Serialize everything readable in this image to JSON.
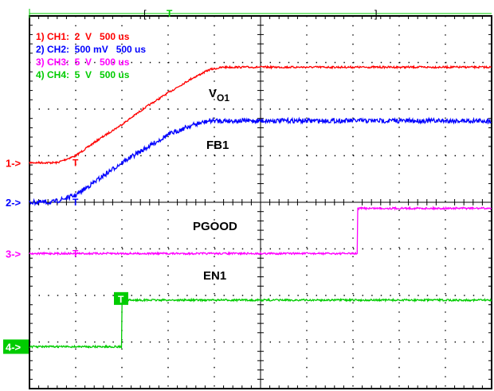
{
  "chart_data": {
    "type": "line",
    "title": "",
    "xlabel": "",
    "ylabel": "",
    "grid": true,
    "x_divisions": 10,
    "y_divisions": 8,
    "legend": [
      {
        "text": "1) CH1:  2  V   500 us",
        "color": "#ff0000"
      },
      {
        "text": "2) CH2:  500 mV   500 us",
        "color": "#0000ff"
      },
      {
        "text": "3) CH3:  5  V   500 us",
        "color": "#ff00ff"
      },
      {
        "text": "4) CH4:  5  V   500 us",
        "color": "#00cc00"
      }
    ],
    "markers": [
      {
        "text": "1->",
        "color": "#ff0000"
      },
      {
        "text": "2->",
        "color": "#0000ff"
      },
      {
        "text": "3->",
        "color": "#ff00ff"
      },
      {
        "text": "4->",
        "color": "#ffffff",
        "bg": "#00cc00"
      }
    ],
    "annotations": [
      {
        "text": "V",
        "sub": "O1"
      },
      {
        "text": "FB1"
      },
      {
        "text": "PGOOD"
      },
      {
        "text": "EN1"
      }
    ],
    "trigger_label": "T",
    "series": [
      {
        "id": "ch1",
        "color": "#ff0000",
        "noise": 0.02,
        "points": [
          [
            0,
            0
          ],
          [
            0.6,
            0
          ],
          [
            1,
            0.15
          ],
          [
            1.5,
            0.5
          ],
          [
            2,
            0.82
          ],
          [
            2.5,
            1.18
          ],
          [
            3,
            1.5
          ],
          [
            3.5,
            1.8
          ],
          [
            3.9,
            2.0
          ],
          [
            4.2,
            2.05
          ],
          [
            10,
            2.05
          ]
        ]
      },
      {
        "id": "ch2",
        "color": "#0000ff",
        "noise": 0.05,
        "points": [
          [
            0,
            0
          ],
          [
            0.5,
            0
          ],
          [
            1,
            0.15
          ],
          [
            1.5,
            0.5
          ],
          [
            2,
            0.85
          ],
          [
            2.5,
            1.15
          ],
          [
            3,
            1.45
          ],
          [
            3.5,
            1.65
          ],
          [
            3.9,
            1.75
          ],
          [
            10,
            1.75
          ]
        ]
      },
      {
        "id": "ch3",
        "color": "#ff00ff",
        "noise": 0.02,
        "points": [
          [
            0,
            0
          ],
          [
            7.1,
            0
          ],
          [
            7.1,
            0.97
          ],
          [
            10,
            0.97
          ]
        ]
      },
      {
        "id": "ch4",
        "color": "#00cc00",
        "noise": 0.02,
        "points": [
          [
            0,
            0
          ],
          [
            2,
            0
          ],
          [
            2,
            1.0
          ],
          [
            10,
            1.0
          ]
        ]
      }
    ]
  }
}
